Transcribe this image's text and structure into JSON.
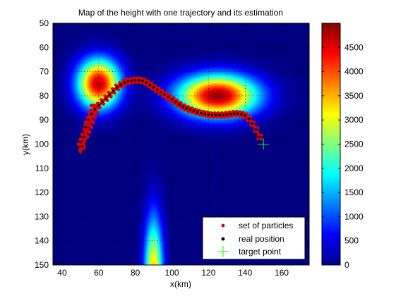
{
  "chart_data": {
    "type": "heatmap",
    "title": "Map of the height with one trajectory and its estimation",
    "xlabel": "x(km)",
    "ylabel": "y(km)",
    "xlim": [
      35,
      175
    ],
    "ylim": [
      50,
      150
    ],
    "y_reversed": true,
    "x_ticks": [
      40,
      60,
      80,
      100,
      120,
      140,
      160
    ],
    "y_ticks": [
      50,
      60,
      70,
      80,
      90,
      100,
      110,
      120,
      130,
      140,
      150
    ],
    "grid": "dotted",
    "colormap": "jet",
    "colorbar": {
      "range": [
        0,
        5000
      ],
      "ticks": [
        0,
        500,
        1000,
        1500,
        2000,
        2500,
        3000,
        3500,
        4000,
        4500
      ]
    },
    "height_field": [
      {
        "cx": 60,
        "cy": 75,
        "sx": 8,
        "sy": 7,
        "amp": 4700
      },
      {
        "cx": 125,
        "cy": 80,
        "sx": 15,
        "sy": 6,
        "amp": 4900
      },
      {
        "cx": 90,
        "cy": 155,
        "sx": 3.5,
        "sy": 17,
        "amp": 3500
      }
    ],
    "legend": {
      "position": "bottom-right",
      "entries": [
        {
          "label": "set of particles",
          "marker": "dot",
          "color": "#e00000"
        },
        {
          "label": "real position",
          "marker": "dot",
          "color": "#000000"
        },
        {
          "label": "target point",
          "marker": "plus",
          "color": "#00ff00"
        }
      ]
    },
    "real_position": [
      [
        51,
        101
      ],
      [
        52,
        97
      ],
      [
        53,
        93
      ],
      [
        54.5,
        90
      ],
      [
        56,
        87.5
      ],
      [
        58,
        85.5
      ],
      [
        60,
        84
      ],
      [
        62,
        82.5
      ],
      [
        64,
        81
      ],
      [
        66,
        79.5
      ],
      [
        68,
        78
      ],
      [
        70,
        76.5
      ],
      [
        72,
        75.5
      ],
      [
        74,
        74.5
      ],
      [
        76,
        74
      ],
      [
        78,
        73.8
      ],
      [
        80,
        73.5
      ],
      [
        82,
        73.5
      ],
      [
        84,
        73.8
      ],
      [
        86,
        74.5
      ],
      [
        88,
        75.5
      ],
      [
        90,
        76.5
      ],
      [
        92,
        77.5
      ],
      [
        94,
        78.5
      ],
      [
        96,
        79.5
      ],
      [
        98,
        80.5
      ],
      [
        100,
        81.5
      ],
      [
        102,
        82.5
      ],
      [
        104,
        83.5
      ],
      [
        106,
        84.5
      ],
      [
        108,
        85.2
      ],
      [
        110,
        85.8
      ],
      [
        112,
        86.3
      ],
      [
        114,
        86.8
      ],
      [
        116,
        87.2
      ],
      [
        118,
        87.5
      ],
      [
        120,
        87.8
      ],
      [
        122,
        88
      ],
      [
        124,
        88
      ],
      [
        126,
        88
      ],
      [
        128,
        88
      ],
      [
        130,
        87.8
      ],
      [
        132,
        87.6
      ],
      [
        134,
        87.4
      ],
      [
        136,
        87.4
      ],
      [
        138,
        87.6
      ],
      [
        140,
        88.2
      ],
      [
        142,
        89.5
      ],
      [
        144,
        91.5
      ],
      [
        146,
        94
      ],
      [
        148,
        97
      ]
    ],
    "particles_cloud": [
      [
        49,
        100
      ],
      [
        50,
        102
      ],
      [
        50,
        98
      ],
      [
        51,
        96
      ],
      [
        52,
        99
      ],
      [
        52,
        94
      ],
      [
        53,
        97
      ],
      [
        53,
        91
      ],
      [
        54,
        94
      ],
      [
        54,
        89
      ],
      [
        55,
        92
      ],
      [
        55,
        87
      ],
      [
        56,
        90
      ],
      [
        56,
        86
      ],
      [
        57,
        88
      ],
      [
        57,
        84
      ],
      [
        58,
        86
      ],
      [
        50,
        103
      ],
      [
        51,
        100
      ],
      [
        52,
        101
      ],
      [
        53,
        95
      ],
      [
        54,
        97
      ],
      [
        55,
        95
      ],
      [
        56,
        93
      ],
      [
        55,
        89
      ],
      [
        57,
        91
      ],
      [
        58,
        89
      ],
      [
        56,
        84
      ],
      [
        59,
        87
      ],
      [
        58,
        84
      ],
      [
        60,
        85
      ],
      [
        57,
        86
      ]
    ],
    "target_point": [
      150,
      100
    ]
  }
}
